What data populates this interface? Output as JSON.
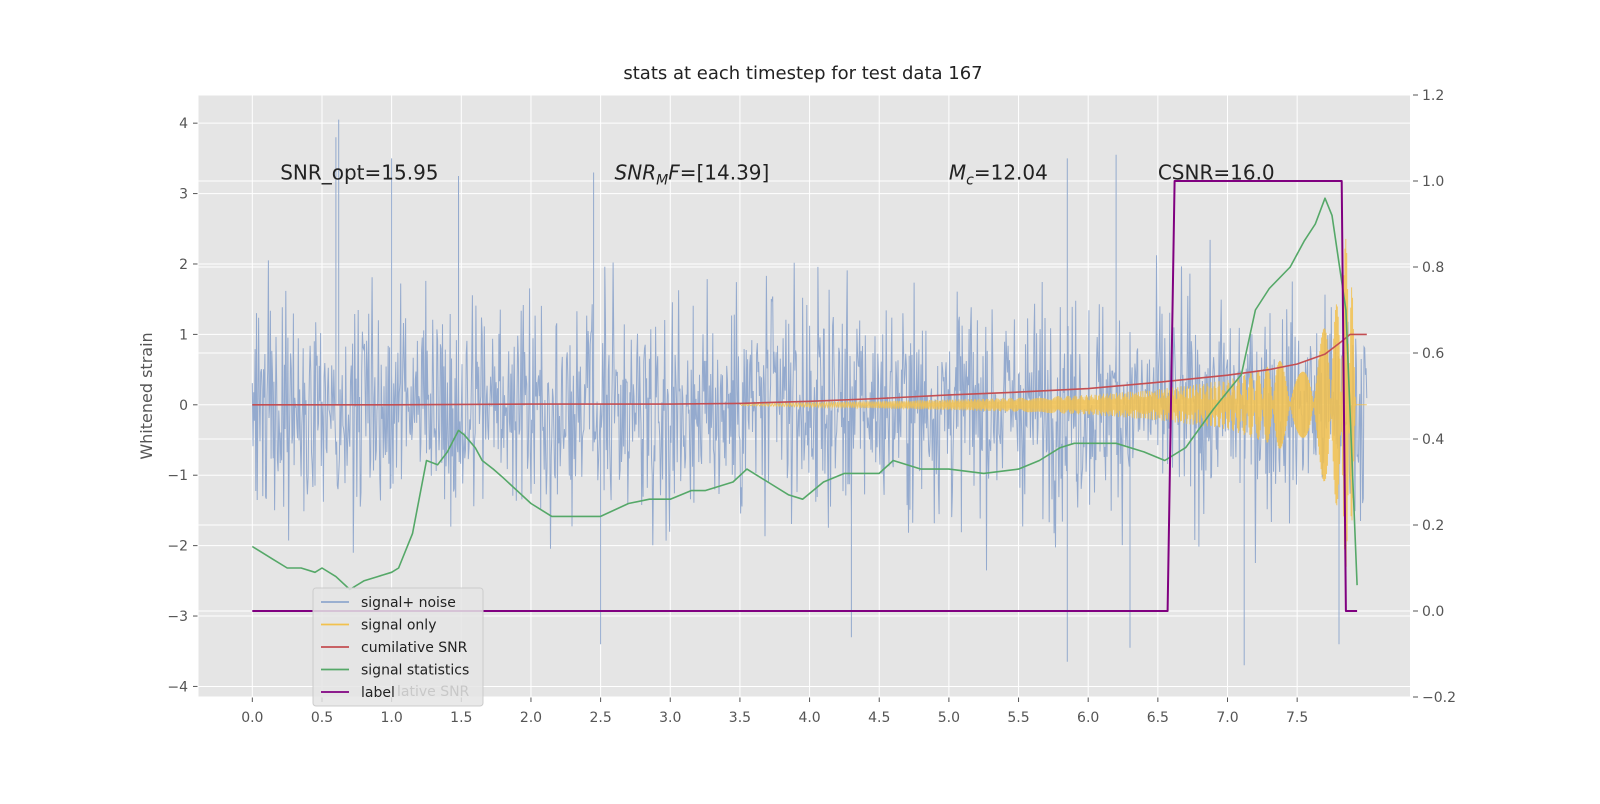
{
  "chart_data": {
    "type": "line",
    "title": "stats at each timestep for test data 167",
    "xlabel": "",
    "ylabel": "Whitened strain",
    "y2label": "",
    "xlim": [
      -0.39,
      8.31
    ],
    "ylim": [
      -4.15,
      4.4
    ],
    "y2lim": [
      -0.2,
      1.2
    ],
    "xticks": [
      "0.0",
      "0.5",
      "1.0",
      "1.5",
      "2.0",
      "2.5",
      "3.0",
      "3.5",
      "4.0",
      "4.5",
      "5.0",
      "5.5",
      "6.0",
      "6.5",
      "7.0",
      "7.5"
    ],
    "yticks": [
      "4",
      "3",
      "2",
      "1",
      "0",
      "−1",
      "−2",
      "−3",
      "−4"
    ],
    "y2ticks": [
      "1.2",
      "1.0",
      "0.8",
      "0.6",
      "0.4",
      "0.2",
      "0.0",
      "−0.2"
    ],
    "grid": true,
    "annotations": [
      {
        "text": "SNR_opt=15.95",
        "x": 0.2,
        "y": 3.3
      },
      {
        "text": "SNRₘF=[14.39]",
        "x": 2.6,
        "y": 3.3,
        "italic_prefix": "SNR",
        "sub": "M",
        "italic_suffix": "F",
        "rest": "=[14.39]"
      },
      {
        "text": "Mᶜ=12.04",
        "x": 5.0,
        "y": 3.3,
        "italic_prefix": "M",
        "sub": "c",
        "rest": "=12.04"
      },
      {
        "text": "CSNR=16.0",
        "x": 6.5,
        "y": 3.3
      }
    ],
    "legend": {
      "placement": "lower-left",
      "ghost_text": "lative SNR",
      "entries": [
        {
          "label": "signal+ noise",
          "color": "#8fa7cc"
        },
        {
          "label": "signal only",
          "color": "#f2c14e"
        },
        {
          "label": "cumilative SNR",
          "color": "#c44e52"
        },
        {
          "label": "signal statistics",
          "color": "#55a868"
        },
        {
          "label": "label",
          "color": "#800080"
        }
      ]
    },
    "series": [
      {
        "name": "signal+ noise",
        "axis": "left",
        "color": "#8fa7cc",
        "style": "dense-noise",
        "x_range": [
          0.0,
          8.0
        ],
        "envelope_typical": [
          -2.0,
          2.0
        ],
        "extremes": [
          [
            0.62,
            4.05
          ],
          [
            0.6,
            3.8
          ],
          [
            1.48,
            3.25
          ],
          [
            1.0,
            3.5
          ],
          [
            2.45,
            3.3
          ],
          [
            5.85,
            3.5
          ],
          [
            6.2,
            3.55
          ],
          [
            2.5,
            -3.4
          ],
          [
            7.12,
            -3.7
          ],
          [
            5.85,
            -3.65
          ],
          [
            6.3,
            -3.45
          ],
          [
            7.8,
            -3.4
          ],
          [
            4.3,
            -3.3
          ]
        ]
      },
      {
        "name": "signal only",
        "axis": "left",
        "color": "#f2c14e",
        "style": "chirp",
        "x_range": [
          3.5,
          8.0
        ],
        "amplitude_points": [
          [
            3.5,
            0.01
          ],
          [
            4.5,
            0.05
          ],
          [
            5.5,
            0.1
          ],
          [
            6.0,
            0.14
          ],
          [
            6.5,
            0.22
          ],
          [
            7.0,
            0.35
          ],
          [
            7.3,
            0.55
          ],
          [
            7.5,
            0.75
          ],
          [
            7.7,
            1.1
          ],
          [
            7.8,
            1.5
          ],
          [
            7.85,
            2.4
          ],
          [
            7.88,
            2.7
          ],
          [
            7.92,
            0.0
          ],
          [
            8.0,
            0.0
          ]
        ]
      },
      {
        "name": "cumilative SNR",
        "axis": "left",
        "color": "#c44e52",
        "x": [
          0.0,
          1.0,
          2.0,
          3.0,
          3.5,
          4.0,
          4.5,
          5.0,
          5.5,
          6.0,
          6.5,
          7.0,
          7.3,
          7.5,
          7.7,
          7.82,
          7.88,
          8.0
        ],
        "values": [
          0.0,
          0.0,
          0.01,
          0.01,
          0.02,
          0.05,
          0.09,
          0.14,
          0.18,
          0.23,
          0.32,
          0.42,
          0.5,
          0.58,
          0.72,
          0.9,
          1.0,
          1.0
        ]
      },
      {
        "name": "signal statistics",
        "axis": "right",
        "color": "#55a868",
        "x": [
          0.0,
          0.05,
          0.15,
          0.25,
          0.35,
          0.45,
          0.5,
          0.6,
          0.7,
          0.8,
          0.9,
          1.0,
          1.05,
          1.15,
          1.25,
          1.33,
          1.4,
          1.48,
          1.52,
          1.6,
          1.65,
          1.73,
          1.8,
          1.9,
          2.0,
          2.15,
          2.3,
          2.5,
          2.7,
          2.85,
          3.0,
          3.15,
          3.25,
          3.45,
          3.55,
          3.7,
          3.85,
          3.95,
          4.1,
          4.25,
          4.5,
          4.6,
          4.8,
          5.0,
          5.25,
          5.5,
          5.65,
          5.8,
          5.9,
          6.2,
          6.4,
          6.55,
          6.7,
          6.9,
          7.1,
          7.2,
          7.3,
          7.45,
          7.55,
          7.63,
          7.7,
          7.75,
          7.85,
          7.93
        ],
        "values": [
          0.15,
          0.14,
          0.12,
          0.1,
          0.1,
          0.09,
          0.1,
          0.08,
          0.05,
          0.07,
          0.08,
          0.09,
          0.1,
          0.18,
          0.35,
          0.34,
          0.37,
          0.42,
          0.41,
          0.38,
          0.35,
          0.33,
          0.31,
          0.28,
          0.25,
          0.22,
          0.22,
          0.22,
          0.25,
          0.26,
          0.26,
          0.28,
          0.28,
          0.3,
          0.33,
          0.3,
          0.27,
          0.26,
          0.3,
          0.32,
          0.32,
          0.35,
          0.33,
          0.33,
          0.32,
          0.33,
          0.35,
          0.38,
          0.39,
          0.39,
          0.37,
          0.35,
          0.38,
          0.47,
          0.55,
          0.7,
          0.75,
          0.8,
          0.86,
          0.9,
          0.96,
          0.92,
          0.7,
          0.06
        ]
      },
      {
        "name": "label",
        "axis": "right",
        "color": "#800080",
        "x": [
          0.0,
          6.57,
          6.62,
          7.82,
          7.85,
          7.93
        ],
        "values": [
          0.0,
          0.0,
          1.0,
          1.0,
          0.0,
          0.0
        ]
      }
    ]
  }
}
